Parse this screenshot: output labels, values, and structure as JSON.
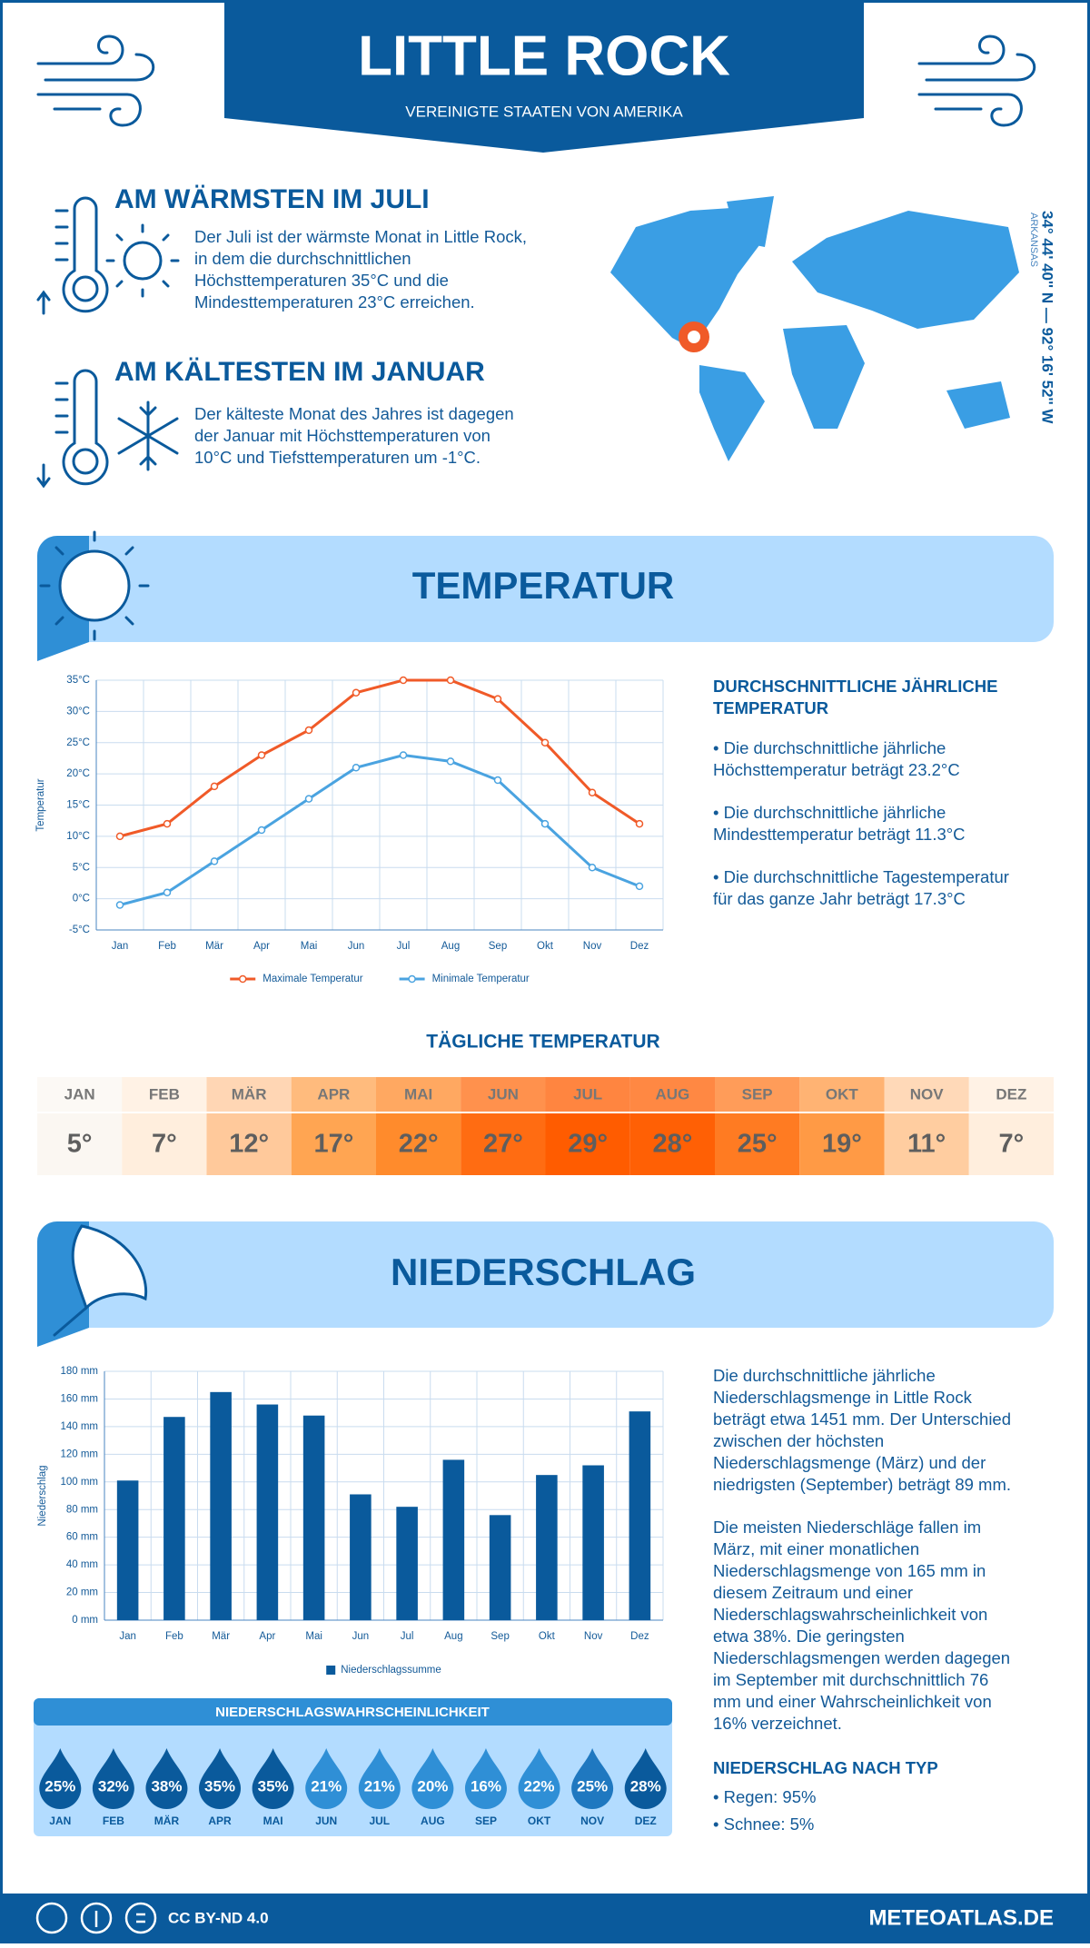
{
  "header": {
    "title": "LITTLE ROCK",
    "subtitle": "VEREINIGTE STAATEN VON AMERIKA"
  },
  "warmest": {
    "title": "AM WÄRMSTEN IM JULI",
    "lines": [
      "Der Juli ist der wärmste Monat in Little Rock,",
      "in dem die durchschnittlichen",
      "Höchsttemperaturen 35°C und die",
      "Mindesttemperaturen 23°C erreichen."
    ]
  },
  "coldest": {
    "title": "AM KÄLTESTEN IM JANUAR",
    "lines": [
      "Der kälteste Monat des Jahres ist dagegen",
      "der Januar mit Höchsttemperaturen von",
      "10°C und Tiefsttemperaturen um -1°C."
    ]
  },
  "location": {
    "coordinates": "34° 44' 40'' N — 92° 16' 52'' W",
    "region": "ARKANSAS"
  },
  "temperature_section": {
    "title": "TEMPERATUR",
    "summary_title": [
      "DURCHSCHNITTLICHE JÄHRLICHE",
      "TEMPERATUR"
    ],
    "bullets": [
      [
        "• Die durchschnittliche jährliche",
        "Höchsttemperatur beträgt 23.2°C"
      ],
      [
        "• Die durchschnittliche jährliche",
        "Mindesttemperatur beträgt 11.3°C"
      ],
      [
        "• Die durchschnittliche Tagestemperatur",
        "für das ganze Jahr beträgt 17.3°C"
      ]
    ]
  },
  "chart_data": [
    {
      "type": "line",
      "y_label": "Temperatur",
      "categories": [
        "Jan",
        "Feb",
        "Mär",
        "Apr",
        "Mai",
        "Jun",
        "Jul",
        "Aug",
        "Sep",
        "Okt",
        "Nov",
        "Dez"
      ],
      "series": [
        {
          "name": "Maximale Temperatur",
          "color": "#f05a28",
          "values": [
            10,
            12,
            18,
            23,
            27,
            33,
            35,
            35,
            32,
            25,
            17,
            12
          ]
        },
        {
          "name": "Minimale Temperatur",
          "color": "#4aa3e0",
          "values": [
            -1,
            1,
            6,
            11,
            16,
            21,
            23,
            22,
            19,
            12,
            5,
            2
          ]
        }
      ],
      "ylim": [
        -5,
        35
      ],
      "yticks": [
        {
          "value": -5,
          "label": "-5°C"
        },
        {
          "value": 0,
          "label": "0°C"
        },
        {
          "value": 5,
          "label": "5°C"
        },
        {
          "value": 10,
          "label": "10°C"
        },
        {
          "value": 15,
          "label": "15°C"
        },
        {
          "value": 20,
          "label": "20°C"
        },
        {
          "value": 25,
          "label": "25°C"
        },
        {
          "value": 30,
          "label": "30°C"
        },
        {
          "value": 35,
          "label": "35°C"
        }
      ],
      "grid": true,
      "legend": "bottom"
    },
    {
      "type": "bar",
      "y_label": "Niederschlag",
      "categories": [
        "Jan",
        "Feb",
        "Mär",
        "Apr",
        "Mai",
        "Jun",
        "Jul",
        "Aug",
        "Sep",
        "Okt",
        "Nov",
        "Dez"
      ],
      "series": [
        {
          "name": "Niederschlagssumme",
          "color": "#0a5a9c",
          "values": [
            101,
            147,
            165,
            156,
            148,
            91,
            82,
            116,
            76,
            105,
            112,
            151
          ]
        }
      ],
      "ylim": [
        0,
        180
      ],
      "yticks": [
        {
          "value": 0,
          "label": "0 mm"
        },
        {
          "value": 20,
          "label": "20 mm"
        },
        {
          "value": 40,
          "label": "40 mm"
        },
        {
          "value": 60,
          "label": "60 mm"
        },
        {
          "value": 80,
          "label": "80 mm"
        },
        {
          "value": 100,
          "label": "100 mm"
        },
        {
          "value": 120,
          "label": "120 mm"
        },
        {
          "value": 140,
          "label": "140 mm"
        },
        {
          "value": 160,
          "label": "160 mm"
        },
        {
          "value": 180,
          "label": "180 mm"
        }
      ],
      "grid": true,
      "legend": "bottom"
    }
  ],
  "daily_temperature": {
    "title": "TÄGLICHE TEMPERATUR",
    "months": [
      "JAN",
      "FEB",
      "MÄR",
      "APR",
      "MAI",
      "JUN",
      "JUL",
      "AUG",
      "SEP",
      "OKT",
      "NOV",
      "DEZ"
    ],
    "values": [
      "5°",
      "7°",
      "12°",
      "17°",
      "22°",
      "27°",
      "29°",
      "28°",
      "25°",
      "19°",
      "11°",
      "7°"
    ],
    "colors": [
      "#fbf7f2",
      "#ffeedd",
      "#ffc99b",
      "#ffa552",
      "#ff8b2c",
      "#ff6c12",
      "#ff5c00",
      "#ff6005",
      "#ff7b22",
      "#ff9a45",
      "#ffcda0",
      "#ffeedd"
    ]
  },
  "precipitation_section": {
    "title": "NIEDERSCHLAG",
    "paragraphs": [
      [
        "Die durchschnittliche jährliche",
        "Niederschlagsmenge in Little Rock",
        "beträgt etwa 1451 mm. Der Unterschied",
        "zwischen der höchsten",
        "Niederschlagsmenge (März) und der",
        "niedrigsten (September) beträgt 89 mm."
      ],
      [
        "Die meisten Niederschläge fallen im",
        "März, mit einer monatlichen",
        "Niederschlagsmenge von 165 mm in",
        "diesem Zeitraum und einer",
        "Niederschlagswahrscheinlichkeit von",
        "etwa 38%. Die geringsten",
        "Niederschlagsmengen werden dagegen",
        "im September mit durchschnittlich 76",
        "mm und einer Wahrscheinlichkeit von",
        "16% verzeichnet."
      ]
    ],
    "type_title": "NIEDERSCHLAG NACH TYP",
    "types": [
      "• Regen: 95%",
      "• Schnee: 5%"
    ]
  },
  "precipitation_probability": {
    "title": "NIEDERSCHLAGSWAHRSCHEINLICHKEIT",
    "months": [
      "JAN",
      "FEB",
      "MÄR",
      "APR",
      "MAI",
      "JUN",
      "JUL",
      "AUG",
      "SEP",
      "OKT",
      "NOV",
      "DEZ"
    ],
    "values": [
      "25%",
      "32%",
      "38%",
      "35%",
      "35%",
      "21%",
      "21%",
      "20%",
      "16%",
      "22%",
      "25%",
      "28%"
    ],
    "colors": [
      "#0a5a9c",
      "#0a5a9c",
      "#0a5a9c",
      "#0a5a9c",
      "#0a5a9c",
      "#2f8fd6",
      "#2f8fd6",
      "#2f8fd6",
      "#2f8fd6",
      "#2f8fd6",
      "#1f78c0",
      "#0a5a9c"
    ]
  },
  "footer": {
    "license": "CC BY-ND 4.0",
    "site": "METEOATLAS.DE"
  }
}
